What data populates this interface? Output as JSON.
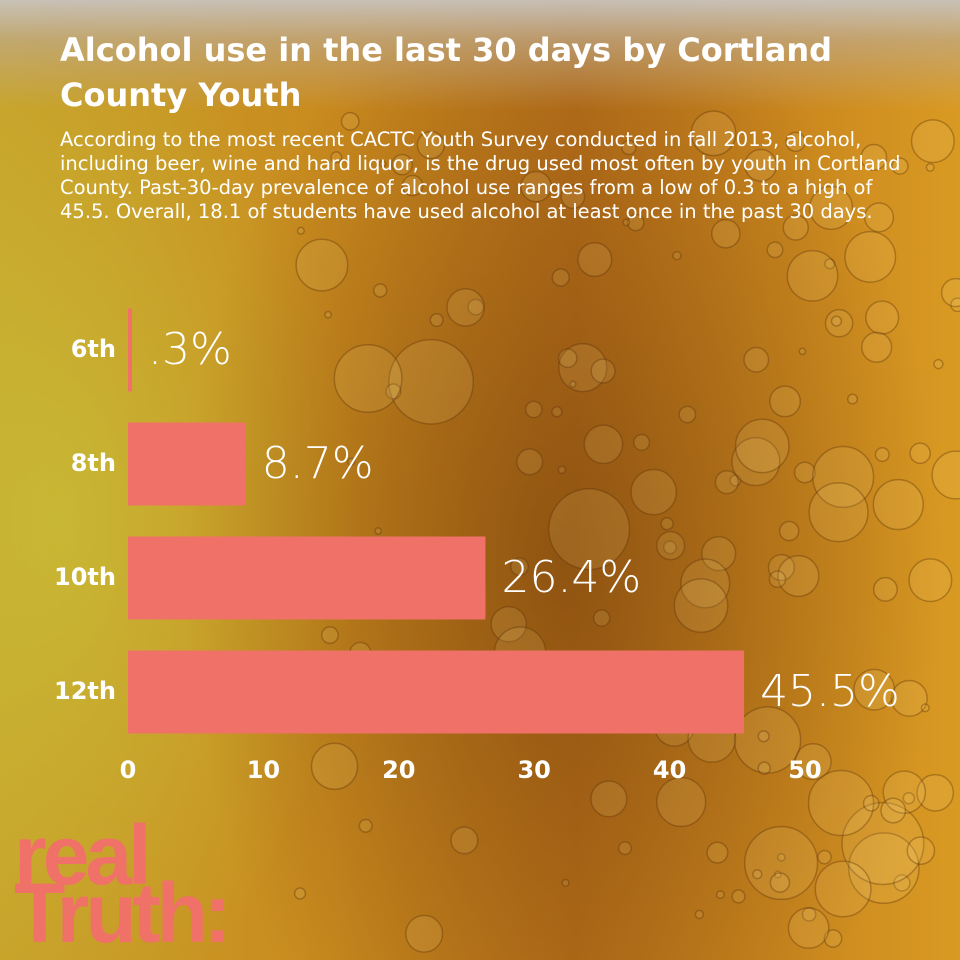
{
  "chart_data": {
    "type": "bar",
    "orientation": "horizontal",
    "title": "Alcohol use in the last 30 days by Cortland County Youth",
    "subtitle": "According to the most recent CACTC Youth Survey conducted in fall 2013, alcohol, including beer, wine and hard liquor, is the drug used most often by youth in Cortland County. Past-30-day prevalence of alcohol use ranges from a low of 0.3 to a high of 45.5. Overall, 18.1 of students have used alcohol at least once in the past 30 days.",
    "categories": [
      "6th",
      "8th",
      "10th",
      "12th"
    ],
    "values": [
      0.3,
      8.7,
      26.4,
      45.5
    ],
    "value_labels": [
      ".3%",
      "8.7%",
      "26.4%",
      "45.5%"
    ],
    "color": "#f07167",
    "xlim": [
      0,
      50
    ],
    "xticks": [
      0,
      10,
      20,
      30,
      40,
      50
    ],
    "grid": false
  },
  "logo": {
    "lines": [
      "real",
      "Truth:"
    ]
  }
}
